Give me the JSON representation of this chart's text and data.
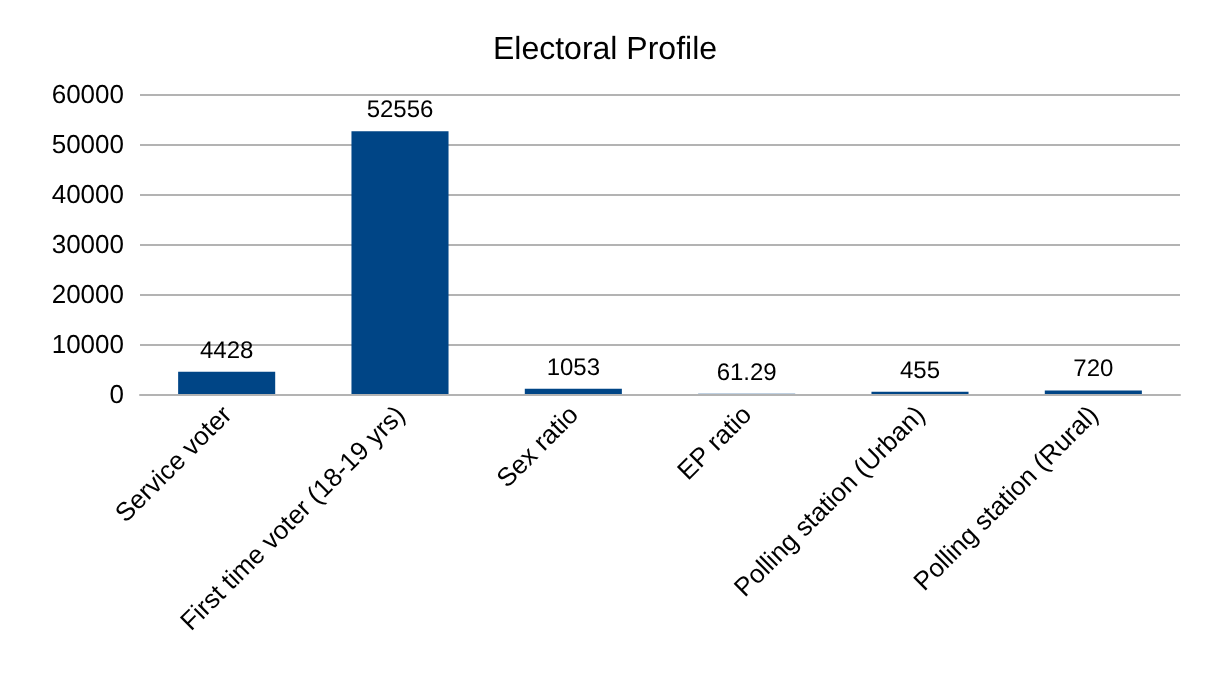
{
  "chart_data": {
    "type": "bar",
    "title": "Electoral Profile",
    "categories": [
      "Service voter",
      "First time voter (18-19 yrs)",
      "Sex ratio",
      "EP ratio",
      "Polling station (Urban)",
      "Polling station (Rural)"
    ],
    "values": [
      4428,
      52556,
      1053,
      61.29,
      455,
      720
    ],
    "color": "#004586",
    "ylim": [
      0,
      60000
    ],
    "yticks": [
      0,
      10000,
      20000,
      30000,
      40000,
      50000,
      60000
    ],
    "grid": "y",
    "data_labels": true
  }
}
